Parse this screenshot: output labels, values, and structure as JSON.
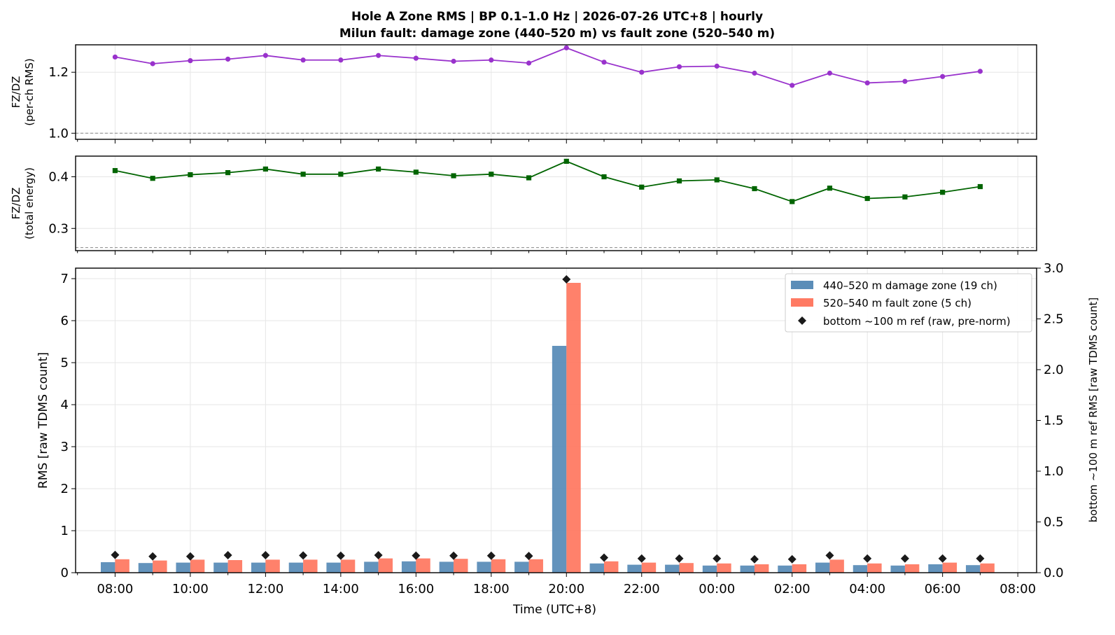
{
  "title_line1": "Hole A Zone RMS  |  BP 0.1–1.0 Hz  |  2026-07-26 UTC+8  |  hourly",
  "title_line2": "Milun fault: damage zone (440–520 m) vs fault zone (520–540 m)",
  "chart_data": [
    {
      "type": "line",
      "ylabel": [
        "FZ/DZ",
        "(per-ch RMS)"
      ],
      "yticks": [
        1.0,
        1.2
      ],
      "ylim": [
        0.98,
        1.29
      ],
      "reference_line": 1.0,
      "color": "#9932CC",
      "marker": "circle",
      "grid": true,
      "x_hours": [
        8,
        9,
        10,
        11,
        12,
        13,
        14,
        15,
        16,
        17,
        18,
        19,
        20,
        21,
        22,
        23,
        24,
        25,
        26,
        27,
        28,
        29,
        30,
        31
      ],
      "values": [
        1.25,
        1.228,
        1.238,
        1.243,
        1.255,
        1.24,
        1.24,
        1.255,
        1.246,
        1.236,
        1.24,
        1.23,
        1.28,
        1.233,
        1.2,
        1.218,
        1.22,
        1.197,
        1.157,
        1.197,
        1.165,
        1.17,
        1.186,
        1.203
      ]
    },
    {
      "type": "line",
      "ylabel": [
        "FZ/DZ",
        "(total energy)"
      ],
      "yticks": [
        0.3,
        0.4
      ],
      "ylim": [
        0.257,
        0.44
      ],
      "reference_line": 0.263,
      "color": "#006400",
      "marker": "square",
      "grid": true,
      "x_hours": [
        8,
        9,
        10,
        11,
        12,
        13,
        14,
        15,
        16,
        17,
        18,
        19,
        20,
        21,
        22,
        23,
        24,
        25,
        26,
        27,
        28,
        29,
        30,
        31
      ],
      "values": [
        0.412,
        0.397,
        0.404,
        0.408,
        0.415,
        0.405,
        0.405,
        0.415,
        0.409,
        0.402,
        0.405,
        0.398,
        0.43,
        0.4,
        0.38,
        0.392,
        0.394,
        0.377,
        0.352,
        0.378,
        0.358,
        0.361,
        0.37,
        0.381
      ]
    },
    {
      "type": "bar",
      "xlabel": "Time (UTC+8)",
      "ylabel": "RMS  [raw TDMS count]",
      "ylabel_right": "bottom ~100 m ref RMS  [raw TDMS count]",
      "ylim": [
        0,
        7.25
      ],
      "yticks": [
        0,
        1,
        2,
        3,
        4,
        5,
        6,
        7
      ],
      "ylim_right": [
        0,
        3.0
      ],
      "yticks_right": [
        "0.0",
        "0.5",
        "1.0",
        "1.5",
        "2.0",
        "2.5",
        "3.0"
      ],
      "xtick_labels": [
        "08:00",
        "10:00",
        "12:00",
        "14:00",
        "16:00",
        "18:00",
        "20:00",
        "22:00",
        "00:00",
        "02:00",
        "04:00",
        "06:00",
        "08:00"
      ],
      "xlim_hours": [
        6.95,
        32.5
      ],
      "grid": true,
      "legend_position": "top-right",
      "x_hours": [
        8,
        9,
        10,
        11,
        12,
        13,
        14,
        15,
        16,
        17,
        18,
        19,
        20,
        21,
        22,
        23,
        24,
        25,
        26,
        27,
        28,
        29,
        30,
        31
      ],
      "series": [
        {
          "name": "440–520 m  damage zone (19 ch)",
          "color": "#5B8DB8",
          "values": [
            0.25,
            0.23,
            0.24,
            0.24,
            0.24,
            0.24,
            0.24,
            0.26,
            0.27,
            0.26,
            0.26,
            0.26,
            5.4,
            0.22,
            0.19,
            0.19,
            0.17,
            0.17,
            0.17,
            0.24,
            0.18,
            0.17,
            0.2,
            0.18
          ]
        },
        {
          "name": "520–540 m  fault zone (5 ch)",
          "color": "#FF7A63",
          "values": [
            0.32,
            0.29,
            0.31,
            0.3,
            0.31,
            0.31,
            0.31,
            0.34,
            0.34,
            0.33,
            0.32,
            0.32,
            6.9,
            0.27,
            0.24,
            0.23,
            0.22,
            0.2,
            0.2,
            0.31,
            0.22,
            0.2,
            0.24,
            0.22
          ]
        },
        {
          "name": "bottom ~100 m ref (raw, pre-norm)",
          "color": "#1a1a1a",
          "marker": "diamond",
          "axis": "right",
          "values": [
            0.175,
            0.16,
            0.16,
            0.172,
            0.172,
            0.17,
            0.167,
            0.172,
            0.168,
            0.167,
            0.167,
            0.165,
            2.89,
            0.148,
            0.14,
            0.14,
            0.14,
            0.133,
            0.133,
            0.17,
            0.14,
            0.14,
            0.14,
            0.14
          ]
        }
      ]
    }
  ]
}
